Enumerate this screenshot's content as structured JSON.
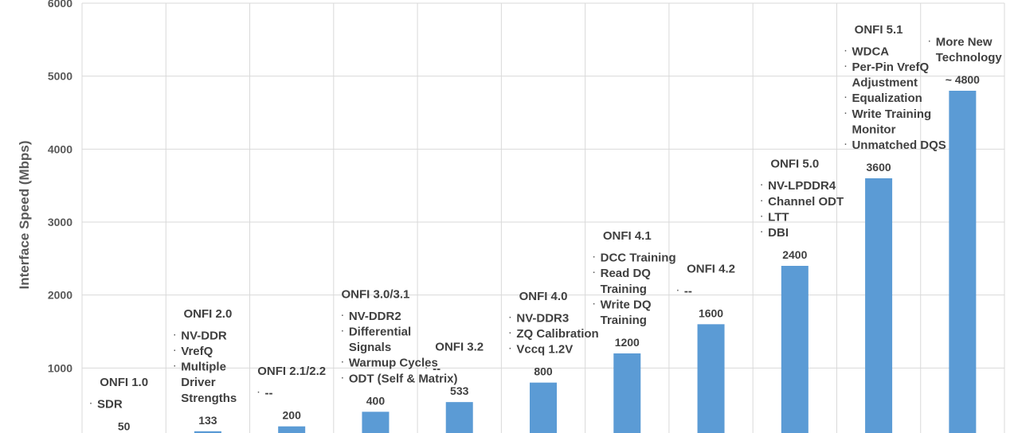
{
  "chart_data": {
    "type": "bar",
    "ylabel": "Interface Speed (Mbps)",
    "xlabel": "",
    "title": "",
    "ylim": [
      0,
      6000
    ],
    "yticks": [
      "1000",
      "2000",
      "3000",
      "4000",
      "5000",
      "6000"
    ],
    "grid": true,
    "bar_color": "#5b9bd5",
    "categories": [
      "ONFI 1.0",
      "ONFI 2.0",
      "ONFI 2.1/2.2",
      "ONFI 3.0/3.1",
      "ONFI 3.2",
      "ONFI 4.0",
      "ONFI 4.1",
      "ONFI 4.2",
      "ONFI 5.0",
      "ONFI 5.1",
      ""
    ],
    "values": [
      50,
      133,
      200,
      400,
      533,
      800,
      1200,
      1600,
      2400,
      3600,
      4800
    ],
    "value_labels": [
      "50",
      "133",
      "200",
      "400",
      "533",
      "800",
      "1200",
      "1600",
      "2400",
      "3600",
      "~ 4800"
    ],
    "features": [
      [
        "SDR"
      ],
      [
        "NV-DDR",
        "VrefQ",
        "Multiple|Driver|Strengths"
      ],
      [
        "--"
      ],
      [
        "NV-DDR2",
        "Differential|Signals",
        "Warmup Cycles",
        "ODT (Self & Matrix)"
      ],
      [
        "--"
      ],
      [
        "NV-DDR3",
        "ZQ Calibration",
        "Vccq 1.2V"
      ],
      [
        "DCC Training",
        "Read DQ|Training",
        "Write DQ|Training"
      ],
      [
        "--"
      ],
      [
        "NV-LPDDR4",
        "Channel ODT",
        "LTT",
        "DBI"
      ],
      [
        "WDCA",
        "Per-Pin VrefQ| Adjustment",
        "Equalization",
        " Write Training| Monitor",
        "Unmatched DQS"
      ],
      [
        "More New|Technology"
      ]
    ]
  }
}
